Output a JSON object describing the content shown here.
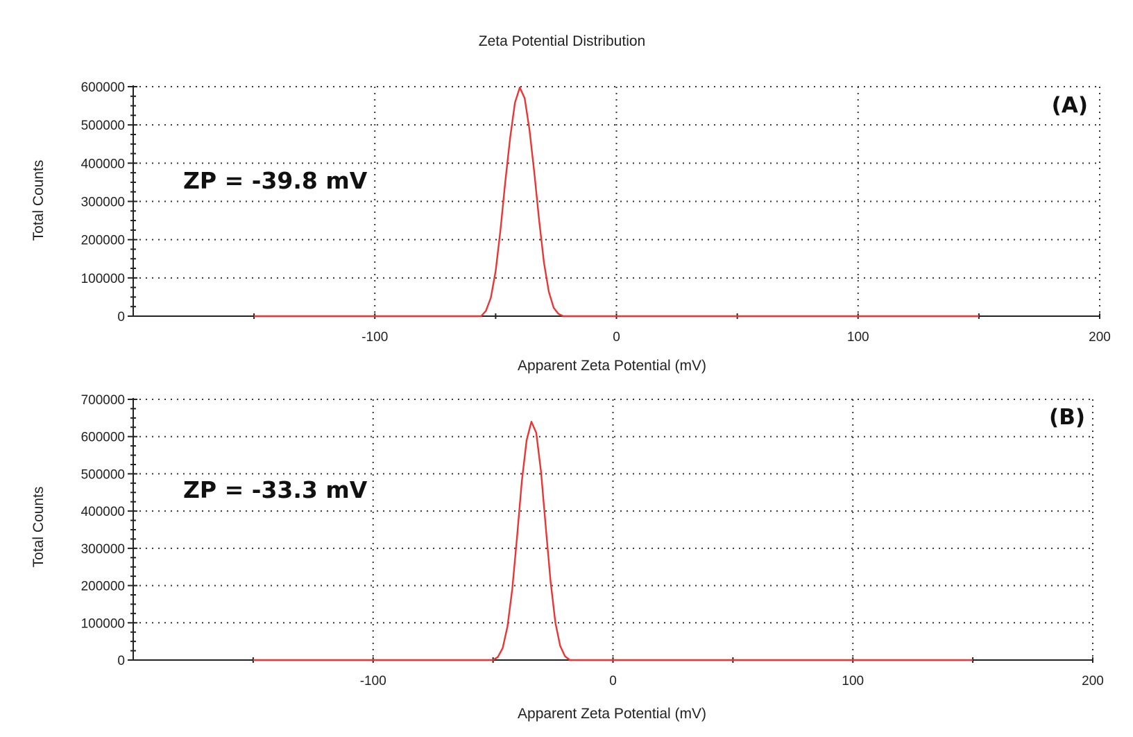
{
  "figure": {
    "title": "Zeta Potential Distribution"
  },
  "chart_data": [
    {
      "type": "line",
      "panel_label": "(A)",
      "annotation": "ZP = -39.8 mV",
      "xlabel": "Apparent Zeta Potential (mV)",
      "ylabel": "Total Counts",
      "xlim": [
        -200,
        200
      ],
      "ylim": [
        0,
        600000
      ],
      "x_ticks": [
        -100,
        0,
        100,
        200
      ],
      "x_minor_ticks": [
        -150,
        -50,
        50,
        150
      ],
      "y_ticks": [
        0,
        100000,
        200000,
        300000,
        400000,
        500000,
        600000
      ],
      "y_tick_labels": [
        "0",
        "100000",
        "200000",
        "300000",
        "400000",
        "500000",
        "600000"
      ],
      "grid": true,
      "line_color": "#ee3333",
      "series": [
        {
          "x": [
            -150,
            -100,
            -56,
            -54,
            -52,
            -50,
            -48,
            -46,
            -44,
            -42,
            -40,
            -38,
            -36,
            -34,
            -32,
            -30,
            -28,
            -26,
            -24,
            -22,
            -20,
            0,
            50,
            100,
            150
          ],
          "y": [
            0,
            0,
            0,
            14000,
            48000,
            118000,
            225000,
            352000,
            467000,
            558000,
            598000,
            570000,
            488000,
            375000,
            250000,
            140000,
            64000,
            22000,
            6000,
            0,
            0,
            0,
            0,
            0,
            0
          ]
        }
      ]
    },
    {
      "type": "line",
      "panel_label": "(B)",
      "annotation": "ZP = -33.3 mV",
      "xlabel": "Apparent Zeta Potential (mV)",
      "ylabel": "Total Counts",
      "xlim": [
        -200,
        200
      ],
      "ylim": [
        0,
        700000
      ],
      "x_ticks": [
        -100,
        0,
        100,
        200
      ],
      "x_minor_ticks": [
        -150,
        -50,
        50,
        150
      ],
      "y_ticks": [
        0,
        100000,
        200000,
        300000,
        400000,
        500000,
        600000,
        700000
      ],
      "y_tick_labels": [
        "0",
        "100000",
        "200000",
        "300000",
        "400000",
        "500000",
        "600000",
        "700000"
      ],
      "grid": true,
      "line_color": "#ee3333",
      "series": [
        {
          "x": [
            -150,
            -100,
            -50,
            -48,
            -46,
            -44,
            -42,
            -40,
            -38,
            -36,
            -34,
            -32,
            -30,
            -28,
            -26,
            -24,
            -22,
            -20,
            -18,
            -16,
            0,
            50,
            100,
            150
          ],
          "y": [
            0,
            0,
            0,
            8000,
            32000,
            90000,
            190000,
            330000,
            480000,
            590000,
            640000,
            610000,
            505000,
            355000,
            210000,
            100000,
            38000,
            10000,
            0,
            0,
            0,
            0,
            0,
            0
          ]
        }
      ]
    }
  ]
}
